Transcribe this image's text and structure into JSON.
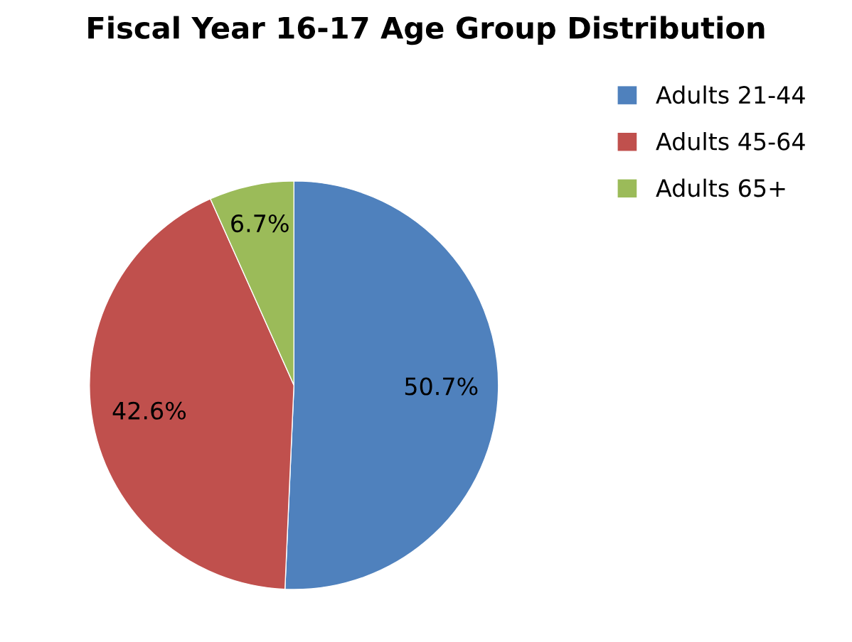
{
  "chart_data": {
    "type": "pie",
    "title": "Fiscal Year 16-17 Age Group Distribution",
    "categories": [
      "Adults 21-44",
      "Adults 45-64",
      "Adults 65+"
    ],
    "values": [
      50.7,
      42.6,
      6.7
    ],
    "colors": [
      "#4f81bd",
      "#c0504d",
      "#9bbb59"
    ],
    "value_labels": [
      "50.7%",
      "42.6%",
      "6.7%"
    ],
    "legend": "top right"
  }
}
